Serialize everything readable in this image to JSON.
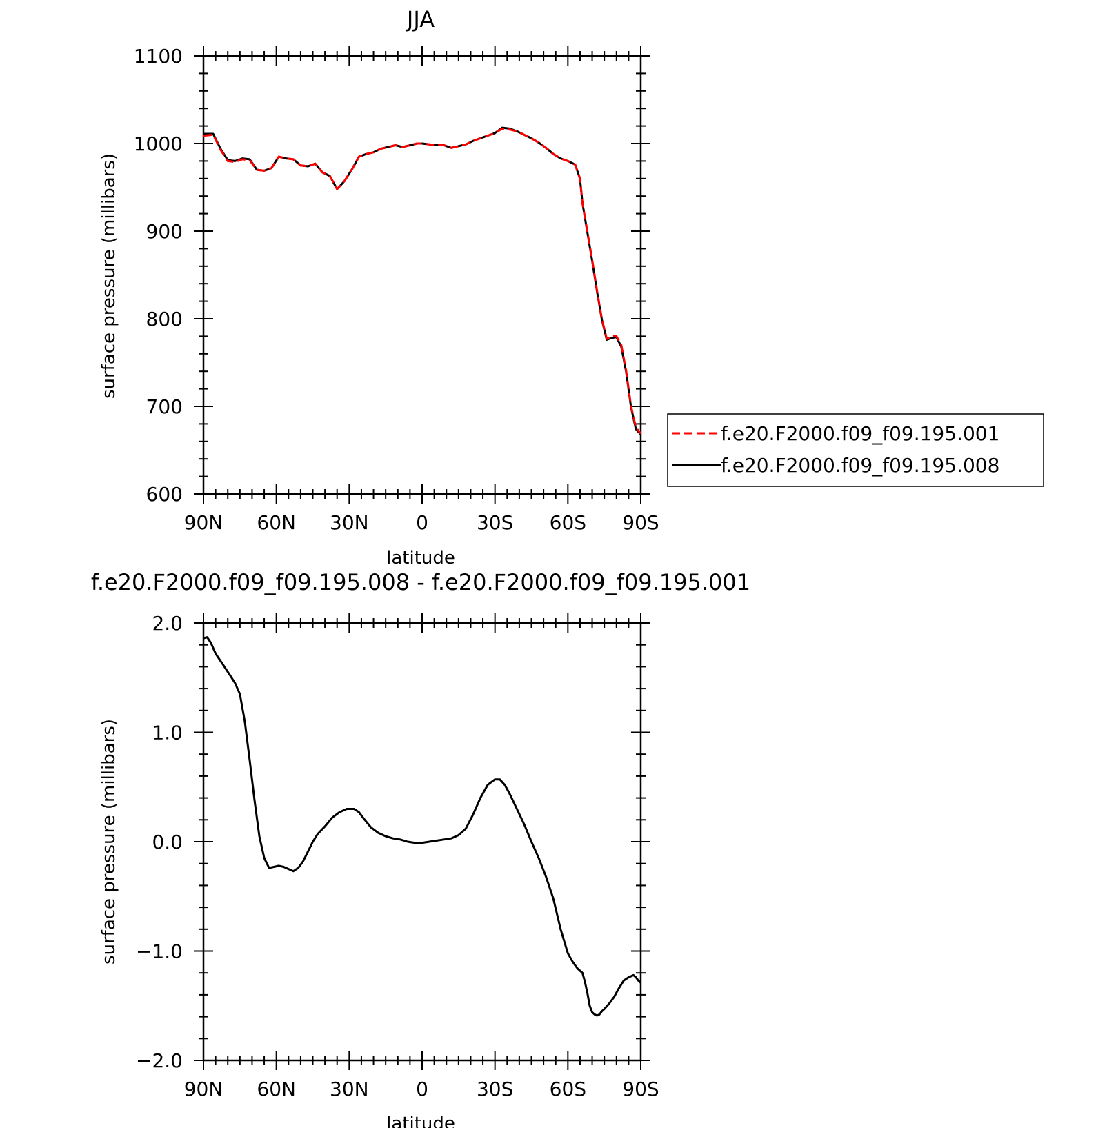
{
  "chart_data": [
    {
      "type": "line",
      "title": "JJA",
      "xlabel": "latitude",
      "ylabel": "surface pressure (millibars)",
      "xlim": [
        90,
        -90
      ],
      "ylim": [
        600,
        1100
      ],
      "xticks": [
        90,
        60,
        30,
        0,
        -30,
        -60,
        -90
      ],
      "xtick_labels": [
        "90N",
        "60N",
        "30N",
        "0",
        "30S",
        "60S",
        "90S"
      ],
      "yticks": [
        600,
        700,
        800,
        900,
        1000,
        1100
      ],
      "ytick_labels": [
        "600",
        "700",
        "800",
        "900",
        "1000",
        "1100"
      ],
      "legend_position": "right",
      "series": [
        {
          "name": "f.e20.F2000.f09_f09.195.001",
          "color": "#ff0000",
          "style": "dashed",
          "x": [
            90,
            86,
            83,
            80,
            77,
            74,
            71,
            68,
            65,
            62,
            59,
            56,
            53,
            50,
            47,
            44,
            41,
            38,
            35,
            32,
            29,
            26,
            23,
            20,
            17,
            14,
            11,
            8,
            5,
            2,
            0,
            -3,
            -6,
            -9,
            -12,
            -15,
            -18,
            -21,
            -24,
            -27,
            -30,
            -33,
            -36,
            -39,
            -42,
            -45,
            -48,
            -51,
            -54,
            -57,
            -60,
            -63,
            -65,
            -66,
            -68,
            -70,
            -72,
            -74,
            -76,
            -78,
            -80,
            -82,
            -84,
            -86,
            -88,
            -90
          ],
          "y": [
            1009,
            1010,
            993,
            980,
            979,
            982,
            981,
            970,
            969,
            972,
            985,
            983,
            982,
            975,
            974,
            977,
            967,
            963,
            948,
            957,
            970,
            985,
            988,
            990,
            994,
            996,
            998,
            996,
            998,
            1000,
            1000,
            999,
            998,
            998,
            995,
            997,
            999,
            1003,
            1006,
            1009,
            1012,
            1017,
            1016,
            1014,
            1010,
            1006,
            1001,
            995,
            988,
            983,
            980,
            976,
            960,
            932,
            900,
            867,
            832,
            800,
            777,
            780,
            780,
            770,
            740,
            700,
            676,
            669
          ]
        },
        {
          "name": "f.e20.F2000.f09_f09.195.008",
          "color": "#000000",
          "style": "solid",
          "x": [
            90,
            86,
            83,
            80,
            77,
            74,
            71,
            68,
            65,
            62,
            59,
            56,
            53,
            50,
            47,
            44,
            41,
            38,
            35,
            32,
            29,
            26,
            23,
            20,
            17,
            14,
            11,
            8,
            5,
            2,
            0,
            -3,
            -6,
            -9,
            -12,
            -15,
            -18,
            -21,
            -24,
            -27,
            -30,
            -33,
            -36,
            -39,
            -42,
            -45,
            -48,
            -51,
            -54,
            -57,
            -60,
            -63,
            -65,
            -66,
            -68,
            -70,
            -72,
            -74,
            -76,
            -78,
            -80,
            -82,
            -84,
            -86,
            -88,
            -90
          ],
          "y": [
            1011,
            1011,
            994,
            981,
            980,
            983,
            982,
            970,
            969,
            972,
            985,
            983,
            982,
            975,
            974,
            977,
            967,
            963,
            948,
            957,
            970,
            985,
            988,
            990,
            994,
            996,
            998,
            996,
            998,
            1000,
            1000,
            999,
            998,
            998,
            995,
            997,
            999,
            1003,
            1006,
            1009,
            1012,
            1018,
            1017,
            1014,
            1010,
            1006,
            1001,
            995,
            988,
            983,
            980,
            976,
            960,
            932,
            899,
            866,
            831,
            799,
            776,
            778,
            779,
            768,
            739,
            699,
            674,
            668
          ]
        }
      ]
    },
    {
      "type": "line",
      "title": "f.e20.F2000.f09_f09.195.008 - f.e20.F2000.f09_f09.195.001",
      "xlabel": "latitude",
      "ylabel": "surface pressure (millibars)",
      "xlim": [
        90,
        -90
      ],
      "ylim": [
        -2.0,
        2.0
      ],
      "xticks": [
        90,
        60,
        30,
        0,
        -30,
        -60,
        -90
      ],
      "xtick_labels": [
        "90N",
        "60N",
        "30N",
        "0",
        "30S",
        "60S",
        "90S"
      ],
      "yticks": [
        -2.0,
        -1.0,
        0.0,
        1.0,
        2.0
      ],
      "ytick_labels": [
        "−2.0",
        "−1.0",
        "0.0",
        "1.0",
        "2.0"
      ],
      "series": [
        {
          "color": "#000000",
          "style": "solid",
          "x": [
            90,
            88.5,
            87,
            85,
            82,
            79,
            77,
            75,
            73,
            71,
            69,
            67,
            65,
            63,
            61,
            59,
            57,
            55,
            53,
            51,
            49,
            47,
            45,
            43,
            40,
            37,
            34,
            31,
            28,
            26,
            24,
            21,
            18,
            15,
            12,
            9,
            6,
            3,
            0,
            -3,
            -6,
            -9,
            -12,
            -15,
            -18,
            -21,
            -24,
            -27,
            -30,
            -32,
            -34,
            -36,
            -39,
            -42,
            -45,
            -48,
            -51,
            -54,
            -57,
            -60,
            -62,
            -64,
            -66,
            -67,
            -68,
            -69,
            -70,
            -71,
            -72,
            -73,
            -74,
            -75,
            -77,
            -79,
            -81,
            -83,
            -85,
            -87,
            -88,
            -89,
            -90
          ],
          "y": [
            1.86,
            1.87,
            1.82,
            1.72,
            1.62,
            1.52,
            1.45,
            1.35,
            1.1,
            0.75,
            0.38,
            0.05,
            -0.15,
            -0.24,
            -0.23,
            -0.22,
            -0.23,
            -0.25,
            -0.27,
            -0.24,
            -0.18,
            -0.09,
            0.0,
            0.07,
            0.14,
            0.22,
            0.27,
            0.3,
            0.3,
            0.27,
            0.21,
            0.13,
            0.08,
            0.05,
            0.03,
            0.02,
            0.0,
            -0.01,
            -0.01,
            0.0,
            0.01,
            0.02,
            0.03,
            0.06,
            0.12,
            0.25,
            0.4,
            0.52,
            0.57,
            0.57,
            0.52,
            0.44,
            0.3,
            0.16,
            0.0,
            -0.15,
            -0.32,
            -0.52,
            -0.8,
            -1.02,
            -1.1,
            -1.16,
            -1.2,
            -1.28,
            -1.38,
            -1.5,
            -1.56,
            -1.58,
            -1.59,
            -1.58,
            -1.55,
            -1.53,
            -1.48,
            -1.42,
            -1.34,
            -1.27,
            -1.24,
            -1.22,
            -1.24,
            -1.27,
            -1.29
          ]
        }
      ]
    }
  ]
}
